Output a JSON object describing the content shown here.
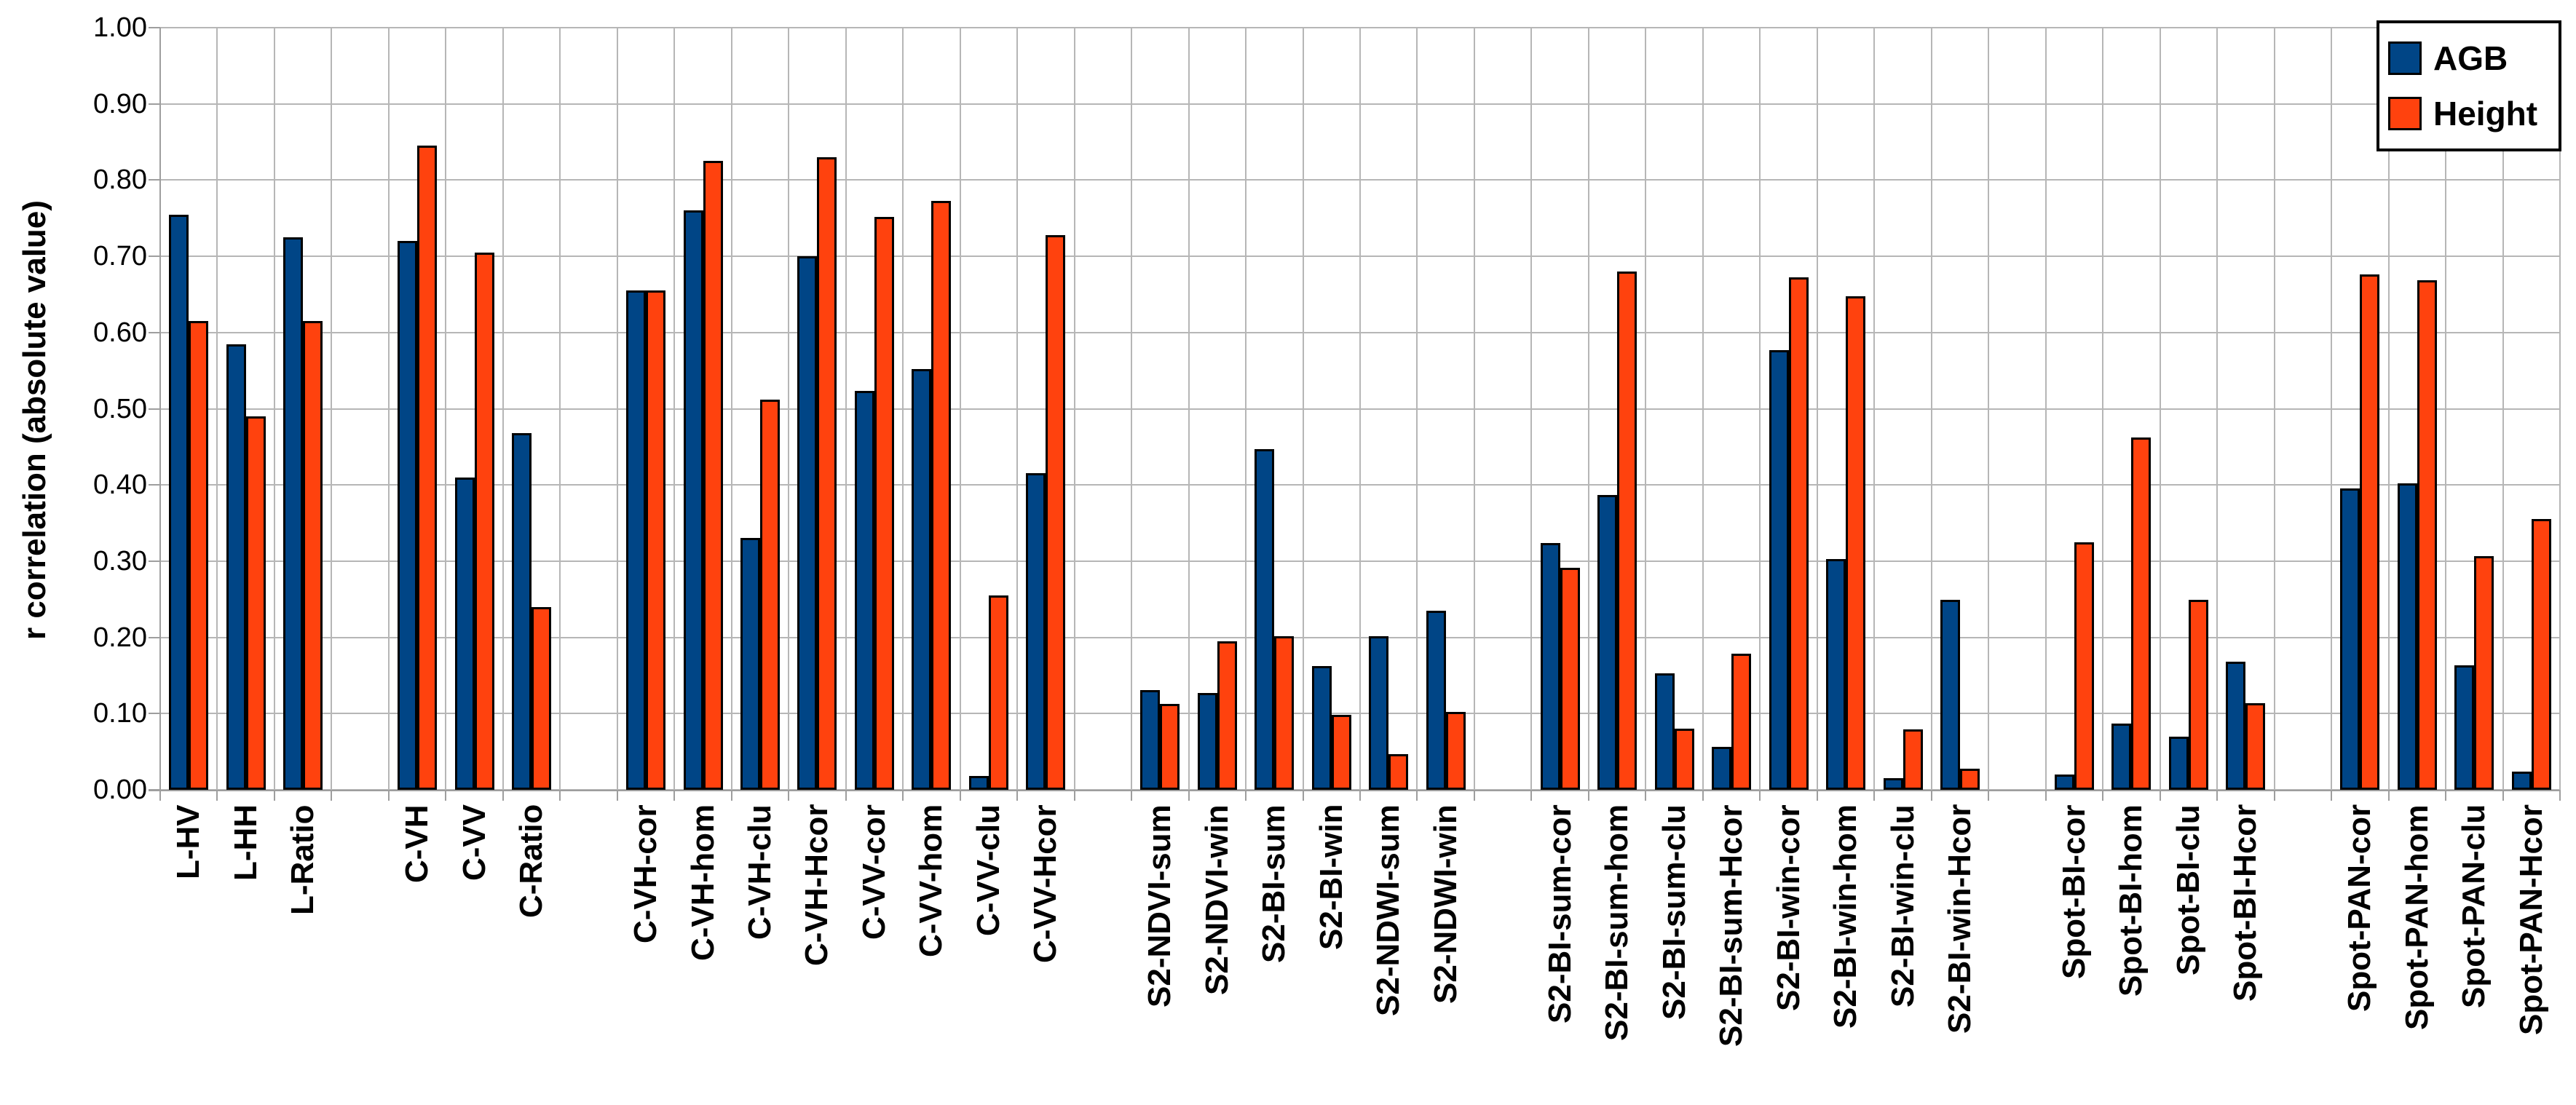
{
  "chart_data": {
    "type": "bar",
    "title": "",
    "ylabel": "r correlation (absolute value)",
    "xlabel": "",
    "ylim": [
      0.0,
      1.0
    ],
    "ytick_step": 0.1,
    "ytick_labels": [
      "0.00",
      "0.10",
      "0.20",
      "0.30",
      "0.40",
      "0.50",
      "0.60",
      "0.70",
      "0.80",
      "0.90",
      "1.00"
    ],
    "grid": true,
    "legend_position": "top-right",
    "categories": [
      "L-HV",
      "L-HH",
      "L-Ratio",
      "C-VH",
      "C-VV",
      "C-Ratio",
      "C-VH-cor",
      "C-VH-hom",
      "C-VH-clu",
      "C-VH-Hcor",
      "C-VV-cor",
      "C-VV-hom",
      "C-VV-clu",
      "C-VV-Hcor",
      "S2-NDVI-sum",
      "S2-NDVI-win",
      "S2-BI-sum",
      "S2-BI-win",
      "S2-NDWI-sum",
      "S2-NDWI-win",
      "S2-BI-sum-cor",
      "S2-BI-sum-hom",
      "S2-BI-sum-clu",
      "S2-BI-sum-Hcor",
      "S2-BI-win-cor",
      "S2-BI-win-hom",
      "S2-BI-win-clu",
      "S2-BI-win-Hcor",
      "Spot-BI-cor",
      "Spot-BI-hom",
      "Spot-BI-clu",
      "Spot-BI-Hcor",
      "Spot-PAN-cor",
      "Spot-PAN-hom",
      "Spot-PAN-clu",
      "Spot-PAN-Hcor"
    ],
    "group_gaps_after": [
      2,
      5,
      13,
      19,
      27,
      31
    ],
    "series": [
      {
        "name": "AGB",
        "color": "#004586",
        "values": [
          0.755,
          0.585,
          0.725,
          0.72,
          0.41,
          0.468,
          0.655,
          0.76,
          0.33,
          0.7,
          0.523,
          0.552,
          0.018,
          0.415,
          0.131,
          0.127,
          0.447,
          0.162,
          0.202,
          0.235,
          0.324,
          0.387,
          0.153,
          0.056,
          0.577,
          0.303,
          0.015,
          0.249,
          0.02,
          0.087,
          0.07,
          0.168,
          0.395,
          0.402,
          0.163,
          0.024
        ]
      },
      {
        "name": "Height",
        "color": "#FF420E",
        "values": [
          0.615,
          0.49,
          0.615,
          0.845,
          0.705,
          0.24,
          0.655,
          0.825,
          0.512,
          0.83,
          0.752,
          0.773,
          0.255,
          0.728,
          0.113,
          0.195,
          0.202,
          0.098,
          0.047,
          0.102,
          0.291,
          0.68,
          0.08,
          0.179,
          0.672,
          0.648,
          0.079,
          0.028,
          0.325,
          0.462,
          0.249,
          0.114,
          0.676,
          0.669,
          0.307,
          0.355
        ]
      }
    ],
    "colors": {
      "grid": "#b6b6b6",
      "axis": "#9e9e9e",
      "bar_border": "#000000",
      "background": "#ffffff",
      "text": "#000000"
    }
  }
}
